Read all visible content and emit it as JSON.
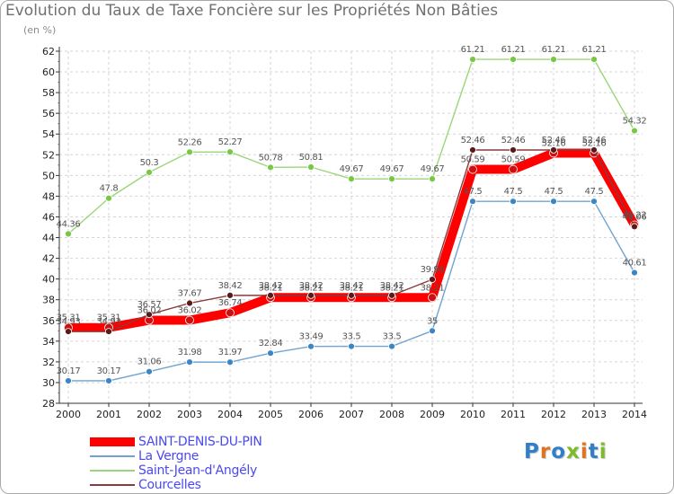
{
  "title": "Evolution du Taux de Taxe Foncière sur les Propriétés Non Bâties",
  "subtitle": "(en %)",
  "logo": {
    "text": "Proxiti",
    "colors": [
      "#2f7fc9",
      "#e1731e",
      "#2f7fc9",
      "#7dbb2a",
      "#e1731e",
      "#2f7fc9",
      "#7dbb2a"
    ]
  },
  "chart_data": {
    "type": "line",
    "title": "Evolution du Taux de Taxe Foncière sur les Propriétés Non Bâties",
    "ylabel": "(en %)",
    "x": [
      "2000",
      "2001",
      "2002",
      "2003",
      "2004",
      "2005",
      "2006",
      "2007",
      "2008",
      "2009",
      "2010",
      "2011",
      "2012",
      "2013",
      "2014"
    ],
    "ylim": [
      28,
      62
    ],
    "yticks": [
      28,
      30,
      32,
      34,
      36,
      38,
      40,
      42,
      44,
      46,
      48,
      50,
      52,
      54,
      56,
      58,
      60,
      62
    ],
    "grid": true,
    "series": [
      {
        "name": "SAINT-DENIS-DU-PIN",
        "color": "#ff0000",
        "marker": "#cc1010",
        "width": "thick",
        "values": [
          35.31,
          35.31,
          36.02,
          36.02,
          36.74,
          38.21,
          38.21,
          38.21,
          38.21,
          38.21,
          50.59,
          50.59,
          52.16,
          52.16,
          45.22
        ],
        "labels": [
          "35.31",
          "35.31",
          "36.02",
          "36.02",
          "36.74",
          "38.21",
          "38.21",
          "38.21",
          "38.21",
          "38.21",
          "50.59",
          "50.59",
          "52.16",
          "52.16",
          "45.22"
        ]
      },
      {
        "name": "La Vergne",
        "color": "#6fa4d2",
        "marker": "#3d86c6",
        "width": "thin",
        "values": [
          30.17,
          30.17,
          31.06,
          31.98,
          31.97,
          32.84,
          33.49,
          33.5,
          33.5,
          35,
          47.5,
          47.5,
          47.5,
          47.5,
          40.61
        ],
        "labels": [
          "30.17",
          "30.17",
          "31.06",
          "31.98",
          "31.97",
          "32.84",
          "33.49",
          "33.5",
          "33.5",
          "35",
          "47.5",
          "47.5",
          "47.5",
          "47.5",
          "40.61"
        ]
      },
      {
        "name": "Saint-Jean-d'Angély",
        "color": "#9bd67a",
        "marker": "#79c843",
        "width": "thin",
        "values": [
          44.36,
          47.8,
          50.3,
          52.26,
          52.27,
          50.78,
          50.81,
          49.67,
          49.67,
          49.67,
          61.21,
          61.21,
          61.21,
          61.21,
          54.32
        ],
        "labels": [
          "44.36",
          "47.8",
          "50.3",
          "52.26",
          "52.27",
          "50.78",
          "50.81",
          "49.67",
          "49.67",
          "49.67",
          "61.21",
          "61.21",
          "61.21",
          "61.21",
          "54.32"
        ]
      },
      {
        "name": "Courcelles",
        "color": "#8a3a3a",
        "marker": "#5a1a1a",
        "width": "thin",
        "values": [
          34.93,
          34.93,
          36.57,
          37.67,
          38.42,
          38.42,
          38.42,
          38.42,
          38.42,
          39.96,
          52.46,
          52.46,
          52.46,
          52.46,
          45.06
        ],
        "labels": [
          "34.93",
          "34.93",
          "36.57",
          "37.67",
          "38.42",
          "38.42",
          "38.42",
          "38.42",
          "38.42",
          "39.96",
          "52.46",
          "52.46",
          "52.46",
          "52.46",
          "45.06"
        ]
      }
    ]
  }
}
